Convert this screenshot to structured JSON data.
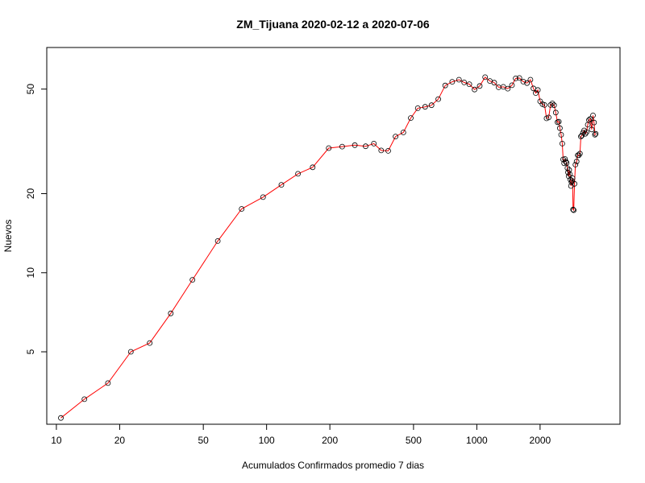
{
  "chart_data": {
    "type": "line",
    "title": "ZM_Tijuana 2020-02-12 a 2020-07-06",
    "xlabel": "Acumulados Confirmados promedio  7  dias",
    "ylabel": "Nuevos",
    "x_scale": "log",
    "y_scale": "log",
    "xlim": [
      9,
      4800
    ],
    "ylim": [
      2.65,
      72
    ],
    "x_ticks": [
      10,
      20,
      50,
      100,
      200,
      500,
      1000,
      2000
    ],
    "x_tick_labels": [
      "10",
      "20",
      "50",
      "100",
      "200",
      "500",
      "1000",
      "2000"
    ],
    "y_ticks": [
      5,
      10,
      20,
      50
    ],
    "y_tick_labels": [
      "5",
      "10",
      "20",
      "50"
    ],
    "line_color": "#ff0000",
    "marker": "open-circle",
    "marker_color": "#000000",
    "grid": false,
    "x": [
      10.5,
      13.6,
      17.6,
      22.6,
      27.8,
      35.0,
      44.4,
      58.6,
      76.1,
      96.2,
      117.6,
      141.0,
      165.6,
      197.4,
      228.9,
      262.9,
      295.8,
      323.7,
      351.0,
      378.9,
      410.6,
      447.2,
      485.4,
      524.1,
      567.6,
      608.9,
      656.0,
      707.6,
      763.8,
      822.9,
      870.3,
      921.6,
      975.5,
      1032.7,
      1095.5,
      1154.2,
      1210.4,
      1269.3,
      1337.0,
      1403.6,
      1470.1,
      1530.8,
      1594.7,
      1663.2,
      1733.8,
      1799.6,
      1859.5,
      1907.4,
      1952.5,
      2003.2,
      2052.5,
      2099.6,
      2147.4,
      2196.1,
      2244.4,
      2288.7,
      2331.7,
      2375.3,
      2421.3,
      2456.3,
      2484.4,
      2518.9,
      2551.6,
      2576.2,
      2602.0,
      2627.2,
      2649.6,
      2674.0,
      2698.1,
      2716.4,
      2735.2,
      2752.9,
      2770.5,
      2788.7,
      2806.6,
      2820.4,
      2835.0,
      2852.6,
      2870.8,
      2891.8,
      2916.2,
      2946.1,
      2985.4,
      3022.6,
      3057.3,
      3093.4,
      3127.1,
      3162.0,
      3200.1,
      3240.7,
      3284.7,
      3327.1,
      3372.9,
      3417.8,
      3466.2,
      3522.0,
      3569.3,
      3612.6,
      3645.6,
      3675.3
    ],
    "y": [
      2.8,
      3.3,
      3.8,
      5.0,
      5.4,
      7.0,
      9.4,
      13.2,
      17.5,
      19.4,
      21.6,
      23.8,
      25.2,
      29.8,
      30.2,
      30.6,
      30.3,
      31.0,
      29.2,
      29.1,
      33.0,
      34.2,
      38.8,
      42.3,
      42.8,
      43.4,
      45.8,
      51.6,
      53.3,
      54.3,
      53.0,
      52.2,
      49.8,
      51.4,
      55.5,
      53.7,
      52.9,
      50.8,
      51.0,
      50.2,
      51.7,
      54.9,
      55.1,
      53.4,
      52.7,
      54.3,
      50.3,
      48.3,
      49.6,
      44.9,
      43.8,
      43.5,
      38.7,
      39.0,
      43.5,
      44.1,
      43.4,
      40.7,
      37.4,
      37.6,
      35.5,
      33.5,
      31.0,
      27.0,
      26.1,
      27.1,
      26.5,
      26.2,
      25.0,
      24.1,
      23.3,
      24.6,
      23.7,
      22.6,
      21.4,
      22.1,
      22.4,
      22.9,
      17.4,
      17.3,
      21.8,
      25.8,
      26.5,
      28.0,
      28.0,
      28.4,
      33.0,
      33.3,
      34.1,
      34.8,
      33.8,
      34.3,
      36.6,
      38.1,
      38.5,
      35.1,
      39.7,
      37.3,
      33.5,
      33.8
    ]
  }
}
